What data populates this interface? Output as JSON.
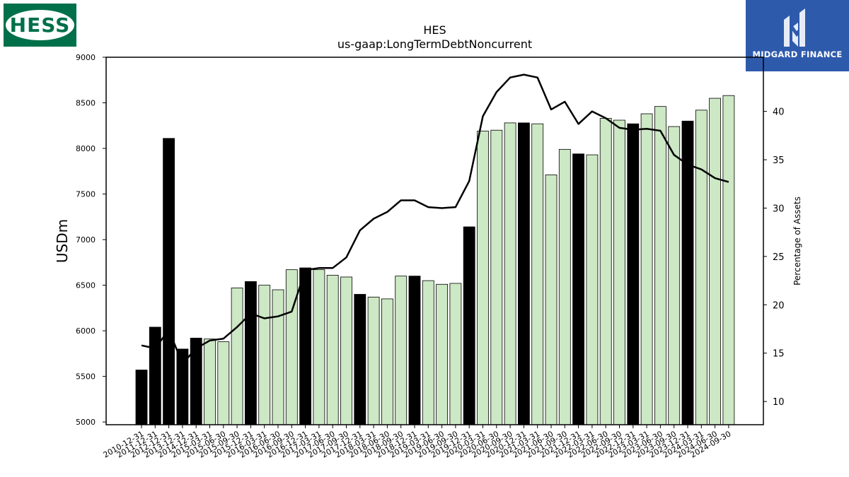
{
  "logos": {
    "left_text": "HESS",
    "right_text": "MIDGARD FINANCE"
  },
  "chart_data": {
    "type": "bar",
    "title": "HES",
    "subtitle": "us-gaap:LongTermDebtNoncurrent",
    "ylabel": "USDm",
    "y2label": "Percentage of Assets",
    "ylim": [
      4970,
      9000
    ],
    "y2lim": [
      7.6,
      45.6
    ],
    "yticks": [
      5000,
      5500,
      6000,
      6500,
      7000,
      7500,
      8000,
      8500,
      9000
    ],
    "y2ticks": [
      10,
      15,
      20,
      25,
      30,
      35,
      40
    ],
    "colors": {
      "annual": "#000000",
      "quarterly": "#cce8c4",
      "line": "#000000"
    },
    "categories": [
      "2010-12-31",
      "2011-12-31",
      "2012-12-31",
      "2013-12-31",
      "2014-12-31",
      "2015-03-31",
      "2015-06-30",
      "2015-09-30",
      "2015-12-31",
      "2016-03-31",
      "2016-06-30",
      "2016-09-30",
      "2016-12-31",
      "2017-03-31",
      "2017-06-30",
      "2017-09-30",
      "2017-12-31",
      "2018-03-31",
      "2018-06-30",
      "2018-09-30",
      "2018-12-31",
      "2019-03-31",
      "2019-06-30",
      "2019-09-30",
      "2019-12-31",
      "2020-03-31",
      "2020-06-30",
      "2020-09-30",
      "2020-12-31",
      "2021-03-31",
      "2021-06-30",
      "2021-09-30",
      "2021-12-31",
      "2022-03-31",
      "2022-06-30",
      "2022-09-30",
      "2022-12-31",
      "2023-03-31",
      "2023-06-30",
      "2023-09-30",
      "2023-12-31",
      "2024-03-31",
      "2024-06-30",
      "2024-09-30"
    ],
    "values": [
      5570,
      6040,
      8110,
      5800,
      5920,
      5910,
      5880,
      6470,
      6540,
      6500,
      6450,
      6670,
      6690,
      6670,
      6610,
      6590,
      6400,
      6370,
      6350,
      6600,
      6600,
      6550,
      6510,
      6520,
      7140,
      8190,
      8200,
      8280,
      8280,
      8270,
      7710,
      7990,
      7940,
      7930,
      8330,
      8310,
      8270,
      8380,
      8460,
      8240,
      8300,
      8420,
      8550,
      8580
    ],
    "annual": [
      true,
      true,
      true,
      true,
      true,
      false,
      false,
      false,
      true,
      false,
      false,
      false,
      true,
      false,
      false,
      false,
      true,
      false,
      false,
      false,
      true,
      false,
      false,
      false,
      true,
      false,
      false,
      false,
      true,
      false,
      false,
      false,
      true,
      false,
      false,
      false,
      true,
      false,
      false,
      false,
      true,
      false,
      false,
      false
    ],
    "series": [
      {
        "values": [
          15.8,
          15.5,
          17.4,
          13.9,
          15.5,
          16.3,
          16.5,
          17.7,
          19.1,
          18.6,
          18.8,
          19.3,
          23.6,
          23.8,
          23.8,
          24.9,
          27.7,
          28.9,
          29.6,
          30.8,
          30.8,
          30.1,
          30.0,
          30.1,
          32.8,
          39.5,
          42.0,
          43.5,
          43.8,
          43.5,
          40.2,
          41.0,
          38.7,
          40.0,
          39.3,
          38.3,
          38.1,
          38.2,
          38.0,
          35.5,
          34.5,
          34.0,
          33.1,
          32.7
        ]
      }
    ]
  }
}
